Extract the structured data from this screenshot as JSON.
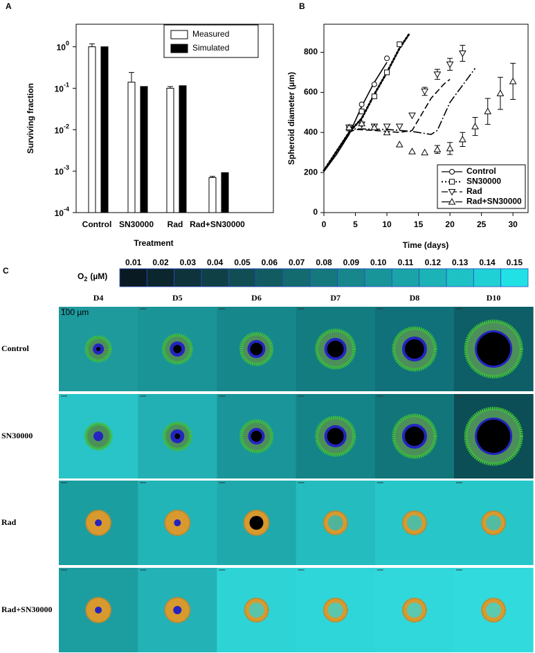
{
  "chart_data": [
    {
      "type": "bar",
      "panel_label": "A",
      "ylabel": "Surviving fraction",
      "xlabel": "Treatment",
      "log_scale": true,
      "legend": "top-right",
      "categories": [
        "Control",
        "SN30000",
        "Rad",
        "Rad+SN30000"
      ],
      "series": [
        {
          "name": "Measured",
          "color": "#ffffff",
          "values": [
            1.0,
            0.14,
            0.1,
            0.0007
          ],
          "errors": [
            0.18,
            0.1,
            0.01,
            5e-05
          ]
        },
        {
          "name": "Simulated",
          "color": "#000000",
          "values": [
            1.0,
            0.11,
            0.115,
            0.00092
          ]
        }
      ],
      "ylim": [
        0.0001,
        3.5
      ],
      "yticks": [
        {
          "value": 0.0001,
          "label": "10",
          "exponent": "-4"
        },
        {
          "value": 0.001,
          "label": "10",
          "exponent": "-3"
        },
        {
          "value": 0.01,
          "label": "10",
          "exponent": "-2"
        },
        {
          "value": 0.1,
          "label": "10",
          "exponent": "-1"
        },
        {
          "value": 1,
          "label": "10",
          "exponent": "0"
        }
      ]
    },
    {
      "type": "line",
      "panel_label": "B",
      "ylabel": "Spheroid diameter (µm)",
      "xlabel": "Time (days)",
      "legend": "bottom-right",
      "xlim": [
        0,
        32.4
      ],
      "ylim": [
        0,
        940
      ],
      "xticks": [
        0,
        5,
        10,
        15,
        20,
        25,
        30
      ],
      "yticks": [
        0,
        200,
        400,
        600,
        800
      ],
      "series": [
        {
          "name": "Control",
          "marker": "circle",
          "dash": "none",
          "x": [
            4,
            6,
            8,
            10
          ],
          "values": [
            425,
            540,
            640,
            770
          ],
          "model_x": [
            0,
            2,
            4,
            6,
            8,
            10
          ],
          "model_values": [
            205,
            290,
            390,
            530,
            650,
            750
          ]
        },
        {
          "name": "SN30000",
          "marker": "square",
          "dash": "2 3",
          "x": [
            4,
            6,
            8,
            10,
            12
          ],
          "values": [
            420,
            505,
            580,
            700,
            840
          ],
          "model_x": [
            0,
            4,
            6,
            8,
            10,
            12,
            13.5
          ],
          "model_values": [
            210,
            400,
            470,
            590,
            700,
            820,
            890
          ]
        },
        {
          "name": "Rad",
          "marker": "triangle-down",
          "dash": "9 4",
          "x": [
            4,
            6,
            8,
            10,
            12,
            14,
            16,
            18,
            20,
            22
          ],
          "values": [
            425,
            440,
            430,
            430,
            430,
            485,
            605,
            690,
            740,
            795
          ],
          "errors": [
            null,
            null,
            null,
            null,
            null,
            null,
            20,
            25,
            30,
            40
          ],
          "model_x": [
            0,
            4,
            5,
            8,
            12,
            14,
            17,
            19,
            20
          ],
          "model_values": [
            210,
            400,
            415,
            410,
            400,
            410,
            570,
            640,
            665
          ]
        },
        {
          "name": "Rad+SN30000",
          "marker": "triangle-up",
          "dash": "12 3 2 3",
          "x": [
            4,
            6,
            8,
            10,
            12,
            14,
            16,
            18,
            20,
            22,
            24,
            26,
            28,
            30
          ],
          "values": [
            425,
            445,
            425,
            400,
            340,
            305,
            300,
            315,
            320,
            365,
            430,
            505,
            595,
            655
          ],
          "errors": [
            null,
            null,
            null,
            null,
            null,
            null,
            null,
            20,
            30,
            35,
            45,
            65,
            80,
            90
          ],
          "model_x": [
            0,
            4,
            5,
            10,
            14,
            17,
            18,
            20,
            24
          ],
          "model_values": [
            210,
            400,
            418,
            415,
            405,
            390,
            410,
            550,
            720
          ]
        }
      ]
    }
  ],
  "panel_c": {
    "panel_label": "C",
    "o2_label": "O",
    "o2_subscript": "2",
    "o2_unit": "(µM)",
    "colorbar": {
      "values": [
        0.01,
        0.02,
        0.03,
        0.04,
        0.05,
        0.06,
        0.07,
        0.08,
        0.09,
        0.1,
        0.11,
        0.12,
        0.13,
        0.14,
        0.15
      ],
      "labels": [
        "0.01",
        "0.02",
        "0.03",
        "0.04",
        "0.05",
        "0.06",
        "0.07",
        "0.08",
        "0.09",
        "0.10",
        "0.11",
        "0.12",
        "0.13",
        "0.14",
        "0.15"
      ],
      "colors": [
        "#0a1a22",
        "#0c262e",
        "#0e333a",
        "#0f4046",
        "#114e54",
        "#125c61",
        "#136a6f",
        "#15787c",
        "#17878b",
        "#189599",
        "#1aa4a8",
        "#1cb3b6",
        "#1ec2c5",
        "#1fd1d4",
        "#22e1e4"
      ]
    },
    "columns": [
      "D4",
      "D5",
      "D6",
      "D7",
      "D8",
      "D10"
    ],
    "rows": [
      "Control",
      "SN30000",
      "Rad",
      "Rad+SN30000"
    ],
    "scale_bar": "100 µm"
  }
}
